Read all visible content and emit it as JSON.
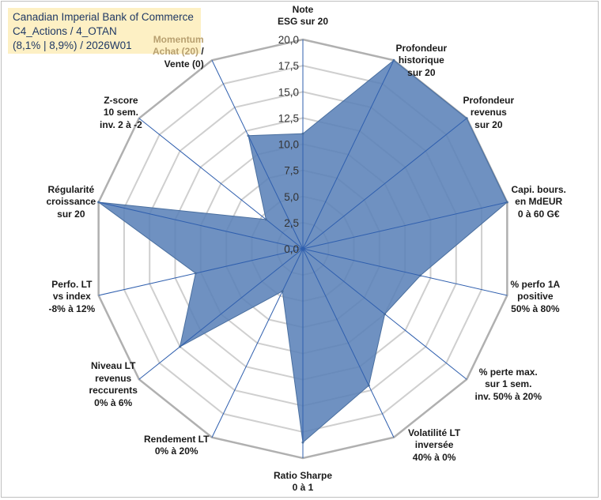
{
  "title_box": {
    "line1": "Canadian Imperial Bank of Commerce",
    "line2": "C4_Actions / 4_OTAN",
    "line3": "(8,1% | 8,9%) / 2026W01",
    "background": "#fdf0c4",
    "text_color": "#1f3864"
  },
  "chart_data": {
    "type": "radar",
    "r_range": [
      0,
      20
    ],
    "r_ticks": [
      "0,0",
      "2,5",
      "5,0",
      "7,5",
      "10,0",
      "12,5",
      "15,0",
      "17,5",
      "20,0"
    ],
    "grid": true,
    "fill_color": "#5b82b8",
    "axes": [
      {
        "label_lines": [
          "Note",
          "ESG sur 20"
        ],
        "value": 11.0
      },
      {
        "label_lines": [
          "Profondeur",
          "historique",
          "sur 20"
        ],
        "value": 20.0
      },
      {
        "label_lines": [
          "Profondeur",
          "revenus",
          "sur 20"
        ],
        "value": 20.0
      },
      {
        "label_lines": [
          "Capi. bours.",
          "en MdEUR",
          "0 à 60 G€"
        ],
        "value": 20.0
      },
      {
        "label_lines": [
          "% perfo 1A",
          "positive",
          "50% à 80%"
        ],
        "value": 11.5
      },
      {
        "label_lines": [
          "% perte max.",
          "sur 1 sem.",
          "inv. 50% à 20%"
        ],
        "value": 10.0
      },
      {
        "label_lines": [
          "Volatilité LT",
          "inversée",
          "40% à 0%"
        ],
        "value": 14.5
      },
      {
        "label_lines": [
          "Ratio Sharpe",
          "0 à 1"
        ],
        "value": 18.5
      },
      {
        "label_lines": [
          "Rendement LT",
          "0% à 20%"
        ],
        "value": 4.5
      },
      {
        "label_lines": [
          "Niveau LT",
          "revenus",
          "reccurents",
          "0% à 6%"
        ],
        "value": 15.0
      },
      {
        "label_lines": [
          "Perfo. LT",
          "vs index",
          "-8% à 12%"
        ],
        "value": 10.5
      },
      {
        "label_lines": [
          "Régularité",
          "croissance",
          "sur 20"
        ],
        "value": 20.0
      },
      {
        "label_lines": [
          "Z-score",
          "10 sem.",
          "inv. 2 à -2"
        ],
        "value": 4.5
      },
      {
        "label_lines_rich": [
          [
            "Momentum",
            ""
          ],
          [
            "Achat (20)",
            " /"
          ],
          [
            "Vente (0)",
            ""
          ]
        ],
        "value": 12.0
      }
    ]
  }
}
